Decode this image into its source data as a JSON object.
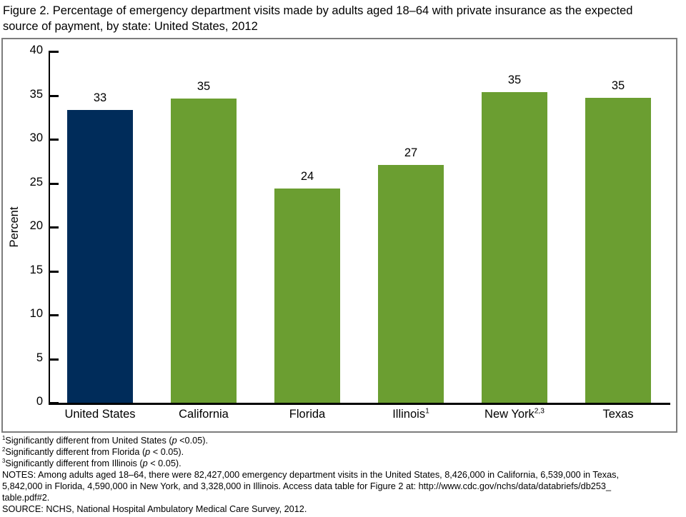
{
  "title": "Figure 2. Percentage of emergency department visits made by adults aged 18–64 with private insurance as the expected\nsource of payment, by state: United States, 2012",
  "chart_data": {
    "type": "bar",
    "title": "Figure 2. Percentage of emergency department visits made by adults aged 18–64 with private insurance as the expected source of payment, by state: United States, 2012",
    "categories": [
      "United States",
      "California",
      "Florida",
      "Illinois",
      "New York",
      "Texas"
    ],
    "category_superscripts": [
      "",
      "",
      "",
      "1",
      "2,3",
      ""
    ],
    "values": [
      33.3,
      34.6,
      24.4,
      27.1,
      35.4,
      34.7
    ],
    "data_labels": [
      "33",
      "35",
      "24",
      "27",
      "35",
      "35"
    ],
    "xlabel": "",
    "ylabel": "Percent",
    "ylim": [
      0,
      40
    ],
    "ytick_interval": 5,
    "grid": false,
    "legend": "none",
    "bar_colors": [
      "#002c5a",
      "#6b9e31",
      "#6b9e31",
      "#6b9e31",
      "#6b9e31",
      "#6b9e31"
    ],
    "accent_colors": {
      "united_states_bar": "#002c5a",
      "state_bar": "#6b9e31",
      "axis": "#000000",
      "frame_border": "#7d7d7d"
    }
  },
  "footnotes": [
    {
      "sup": "1",
      "pre": "Significantly different from United States (",
      "p": "p",
      "post": " <0.05)."
    },
    {
      "sup": "2",
      "pre": "Significantly different from Florida (",
      "p": "p",
      "post": " < 0.05)."
    },
    {
      "sup": "3",
      "pre": "Significantly different from Illinois (",
      "p": "p",
      "post": " < 0.05)."
    }
  ],
  "notes": "NOTES: Among adults aged 18–64, there were 82,427,000 emergency department visits in the United States, 8,426,000 in California, 6,539,000 in Texas,\n5,842,000 in Florida, 4,590,000 in New York, and 3,328,000 in Illinois. Access data table for Figure 2 at: http://www.cdc.gov/nchs/data/databriefs/db253_\ntable.pdf#2.",
  "source": "SOURCE: NCHS, National Hospital Ambulatory Medical Care Survey, 2012."
}
